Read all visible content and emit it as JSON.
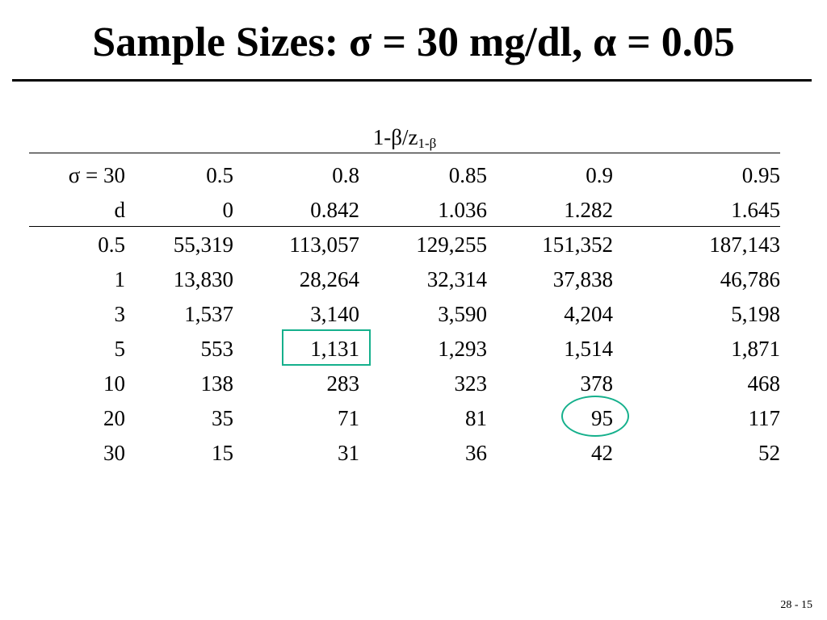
{
  "slide": {
    "title": "Sample Sizes: σ = 30 mg/dl, α = 0.05",
    "page_number": "28 - 15"
  },
  "table": {
    "spanner_main": "1-β/z",
    "spanner_sub": "1-β",
    "header_rows": [
      [
        "σ = 30",
        "0.5",
        "0.8",
        "0.85",
        "0.9",
        "0.95"
      ],
      [
        "d",
        "0",
        "0.842",
        "1.036",
        "1.282",
        "1.645"
      ]
    ],
    "body_rows": [
      [
        "0.5",
        "55,319",
        "113,057",
        "129,255",
        "151,352",
        "187,143"
      ],
      [
        "1",
        "13,830",
        "28,264",
        "32,314",
        "37,838",
        "46,786"
      ],
      [
        "3",
        "1,537",
        "3,140",
        "3,590",
        "4,204",
        "5,198"
      ],
      [
        "5",
        "553",
        "1,131",
        "1,293",
        "1,514",
        "1,871"
      ],
      [
        "10",
        "138",
        "283",
        "323",
        "378",
        "468"
      ],
      [
        "20",
        "35",
        "71",
        "81",
        "95",
        "117"
      ],
      [
        "30",
        "15",
        "31",
        "36",
        "42",
        "52"
      ]
    ],
    "highlight_color": "#15b08c"
  }
}
